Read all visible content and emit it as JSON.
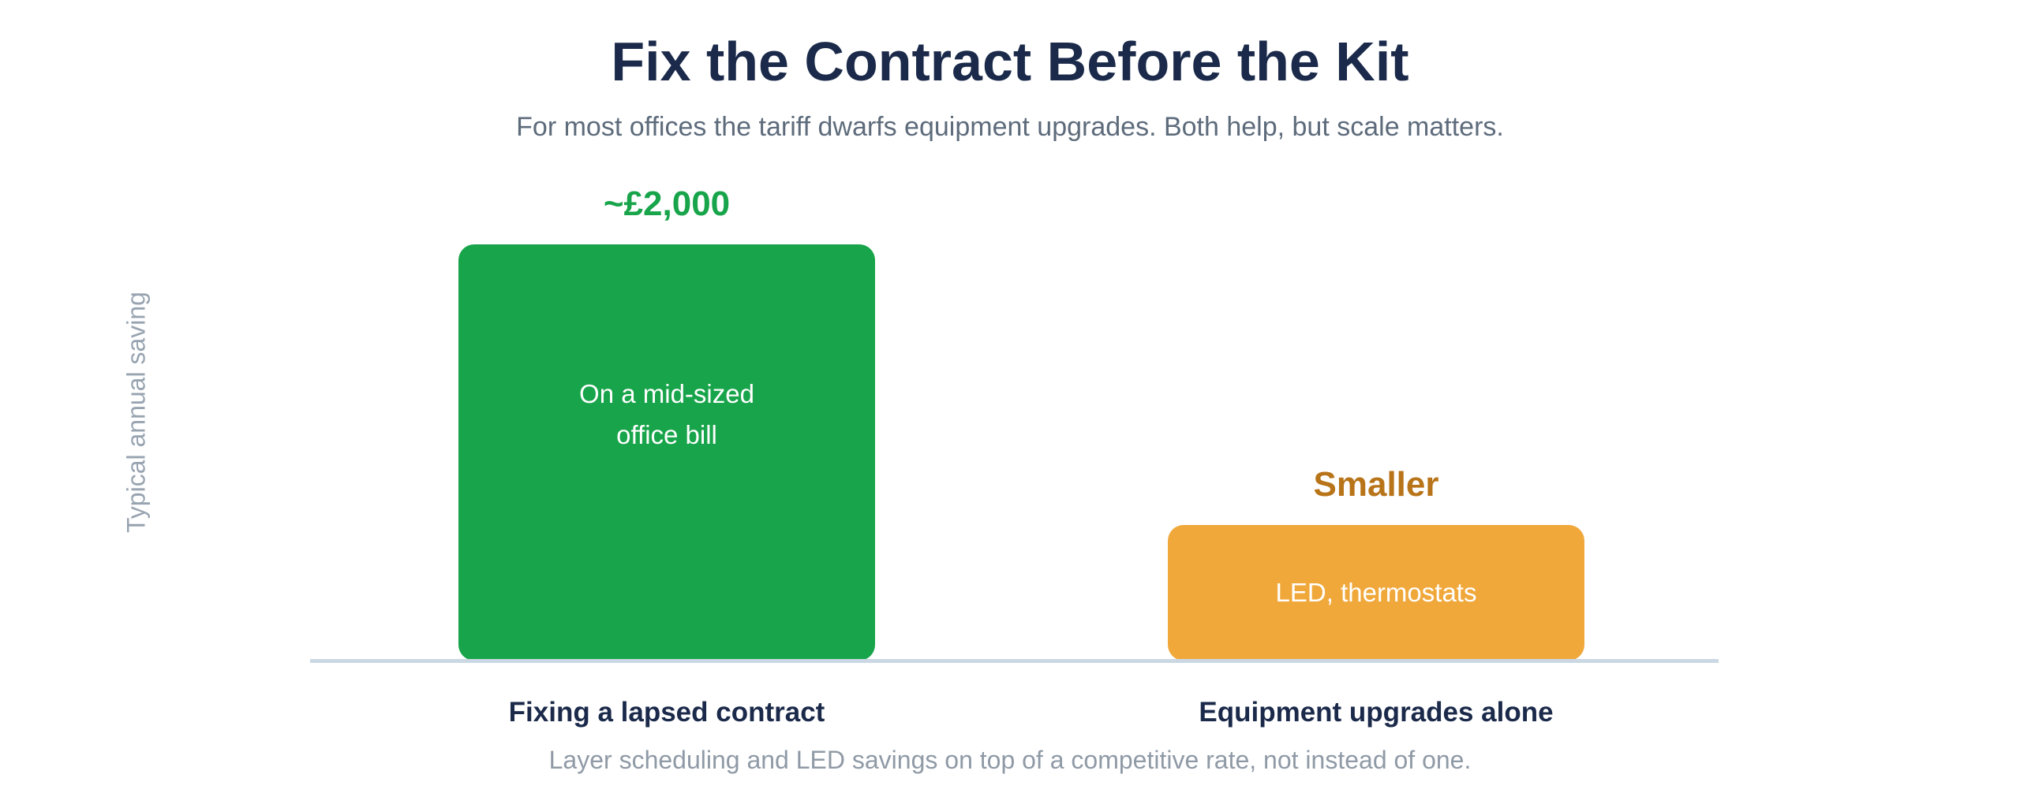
{
  "chart_data": {
    "type": "bar",
    "title": "Fix the Contract Before the Kit",
    "subtitle": "For most offices the tariff dwarfs equipment upgrades. Both help, but scale matters.",
    "ylabel": "Typical annual saving",
    "categories": [
      "Fixing a lapsed contract",
      "Equipment upgrades alone"
    ],
    "values": [
      2000,
      650
    ],
    "ylim": [
      0,
      2000
    ],
    "value_labels": [
      "~£2,000",
      "Smaller"
    ],
    "bar_notes": [
      "On a mid-sized\noffice bill",
      "LED, thermostats"
    ],
    "colors": [
      "#18a44a",
      "#f0a83b"
    ],
    "value_label_colors": [
      "#18a44a",
      "#b87418"
    ],
    "footnote": "Layer scheduling and LED savings on top of a competitive rate, not instead of one.",
    "grid": false,
    "legend": "none"
  }
}
